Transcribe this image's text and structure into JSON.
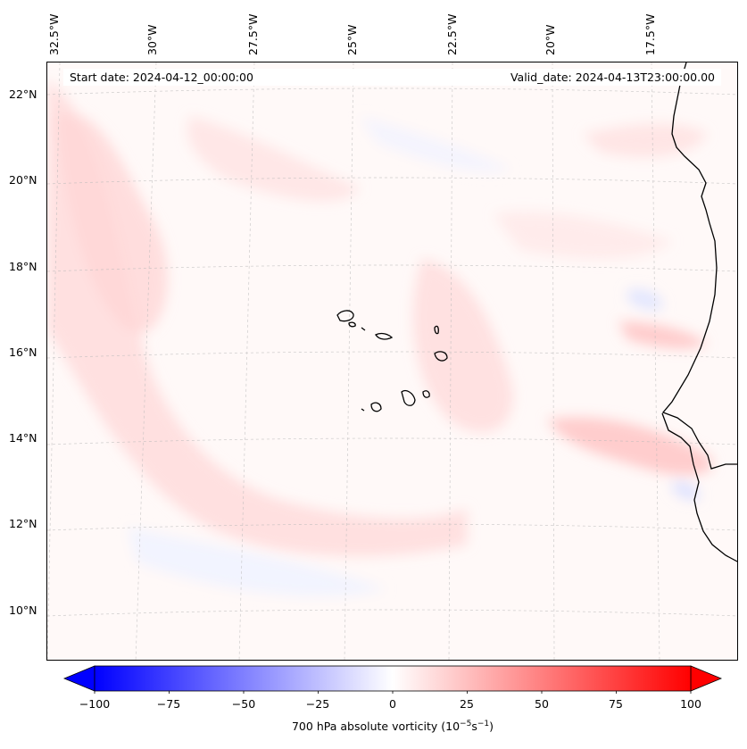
{
  "map": {
    "start_date": "Start date: 2024-04-12_00:00:00",
    "valid_date": "Valid_date: 2024-04-13T23:00:00.00",
    "lon_labels": [
      "32.5°W",
      "30°W",
      "27.5°W",
      "25°W",
      "22.5°W",
      "20°W",
      "17.5°W"
    ],
    "lat_labels": [
      "22°N",
      "20°N",
      "18°N",
      "16°N",
      "14°N",
      "12°N",
      "10°N"
    ],
    "regions": [
      "Cape Verde islands",
      "West African coast"
    ]
  },
  "colorbar": {
    "ticks": [
      "−100",
      "−75",
      "−50",
      "−25",
      "0",
      "25",
      "50",
      "75",
      "100"
    ],
    "label_main": "700 hPa absolute vorticity (10",
    "label_exp1": "−5",
    "label_mid": "s",
    "label_exp2": "−1",
    "label_end": ")",
    "min_color": "#0000ff",
    "mid_color": "#ffffff",
    "max_color": "#ff0000"
  }
}
